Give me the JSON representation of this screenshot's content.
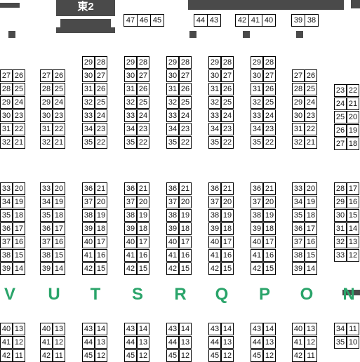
{
  "hall": {
    "label": "東2"
  },
  "top_booths": [
    [
      "47",
      "46",
      "45"
    ],
    [
      "44",
      "43"
    ],
    [
      "42",
      "41",
      "40"
    ],
    [
      "39",
      "38"
    ]
  ],
  "row_letters": [
    "V",
    "U",
    "T",
    "S",
    "R",
    "Q",
    "P",
    "O",
    "N"
  ],
  "upper_blocks": [
    {
      "left": [
        "27",
        "28",
        "29",
        "30",
        "31",
        "32"
      ],
      "right": [
        "26",
        "25",
        "24",
        "23",
        "22",
        "21"
      ]
    },
    {
      "left": [
        "27",
        "28",
        "29",
        "30",
        "31",
        "32"
      ],
      "right": [
        "26",
        "25",
        "24",
        "23",
        "22",
        "21"
      ]
    },
    {
      "left": [
        "29",
        "30",
        "31",
        "32",
        "33",
        "34",
        "35"
      ],
      "right": [
        "28",
        "27",
        "26",
        "25",
        "24",
        "23",
        "22"
      ]
    },
    {
      "left": [
        "29",
        "30",
        "31",
        "32",
        "33",
        "34",
        "35"
      ],
      "right": [
        "28",
        "27",
        "26",
        "25",
        "24",
        "23",
        "22"
      ]
    },
    {
      "left": [
        "29",
        "30",
        "31",
        "32",
        "33",
        "34",
        "35"
      ],
      "right": [
        "28",
        "27",
        "26",
        "25",
        "24",
        "23",
        "22"
      ]
    },
    {
      "left": [
        "29",
        "30",
        "31",
        "32",
        "33",
        "34",
        "35"
      ],
      "right": [
        "28",
        "27",
        "26",
        "25",
        "24",
        "23",
        "22"
      ]
    },
    {
      "left": [
        "29",
        "30",
        "31",
        "32",
        "33",
        "34",
        "35"
      ],
      "right": [
        "28",
        "27",
        "26",
        "25",
        "24",
        "23",
        "22"
      ]
    },
    {
      "left": [
        "27",
        "28",
        "29",
        "30",
        "31",
        "32"
      ],
      "right": [
        "26",
        "25",
        "24",
        "23",
        "22",
        "21"
      ]
    },
    {
      "left": [
        "23",
        "24",
        "25",
        "26",
        "27"
      ],
      "right": [
        "22",
        "21",
        "20",
        "19",
        "18"
      ]
    }
  ],
  "middle_blocks": [
    {
      "left": [
        "33",
        "34",
        "35",
        "36",
        "37",
        "38",
        "39"
      ],
      "right": [
        "20",
        "19",
        "18",
        "17",
        "16",
        "15",
        "14"
      ]
    },
    {
      "left": [
        "33",
        "34",
        "35",
        "36",
        "37",
        "38",
        "39"
      ],
      "right": [
        "20",
        "19",
        "18",
        "17",
        "16",
        "15",
        "14"
      ]
    },
    {
      "left": [
        "36",
        "37",
        "38",
        "39",
        "40",
        "41",
        "42"
      ],
      "right": [
        "21",
        "20",
        "19",
        "18",
        "17",
        "16",
        "15"
      ]
    },
    {
      "left": [
        "36",
        "37",
        "38",
        "39",
        "40",
        "41",
        "42"
      ],
      "right": [
        "21",
        "20",
        "19",
        "18",
        "17",
        "16",
        "15"
      ]
    },
    {
      "left": [
        "36",
        "37",
        "38",
        "39",
        "40",
        "41",
        "42"
      ],
      "right": [
        "21",
        "20",
        "19",
        "18",
        "17",
        "16",
        "15"
      ]
    },
    {
      "left": [
        "36",
        "37",
        "38",
        "39",
        "40",
        "41",
        "42"
      ],
      "right": [
        "21",
        "20",
        "19",
        "18",
        "17",
        "16",
        "15"
      ]
    },
    {
      "left": [
        "36",
        "37",
        "38",
        "39",
        "40",
        "41",
        "42"
      ],
      "right": [
        "21",
        "20",
        "19",
        "18",
        "17",
        "16",
        "15"
      ]
    },
    {
      "left": [
        "33",
        "34",
        "35",
        "36",
        "37",
        "38",
        "39"
      ],
      "right": [
        "20",
        "19",
        "18",
        "17",
        "16",
        "15",
        "14"
      ]
    },
    {
      "left": [
        "28",
        "29",
        "30",
        "31",
        "32",
        "33"
      ],
      "right": [
        "17",
        "16",
        "15",
        "14",
        "13",
        "12"
      ]
    }
  ],
  "lower_blocks": [
    {
      "left": [
        "40",
        "41",
        "42"
      ],
      "right": [
        "13",
        "12",
        "11"
      ]
    },
    {
      "left": [
        "40",
        "41",
        "42"
      ],
      "right": [
        "13",
        "12",
        "11"
      ]
    },
    {
      "left": [
        "43",
        "44",
        "45"
      ],
      "right": [
        "14",
        "13",
        "12"
      ]
    },
    {
      "left": [
        "43",
        "44",
        "45"
      ],
      "right": [
        "14",
        "13",
        "12"
      ]
    },
    {
      "left": [
        "43",
        "44",
        "45"
      ],
      "right": [
        "14",
        "13",
        "12"
      ]
    },
    {
      "left": [
        "43",
        "44",
        "45"
      ],
      "right": [
        "14",
        "13",
        "12"
      ]
    },
    {
      "left": [
        "43",
        "44",
        "45"
      ],
      "right": [
        "14",
        "13",
        "12"
      ]
    },
    {
      "left": [
        "40",
        "41",
        "42"
      ],
      "right": [
        "13",
        "12",
        "11"
      ]
    },
    {
      "left": [
        "34",
        "35"
      ],
      "right": [
        "11",
        "10"
      ]
    }
  ]
}
